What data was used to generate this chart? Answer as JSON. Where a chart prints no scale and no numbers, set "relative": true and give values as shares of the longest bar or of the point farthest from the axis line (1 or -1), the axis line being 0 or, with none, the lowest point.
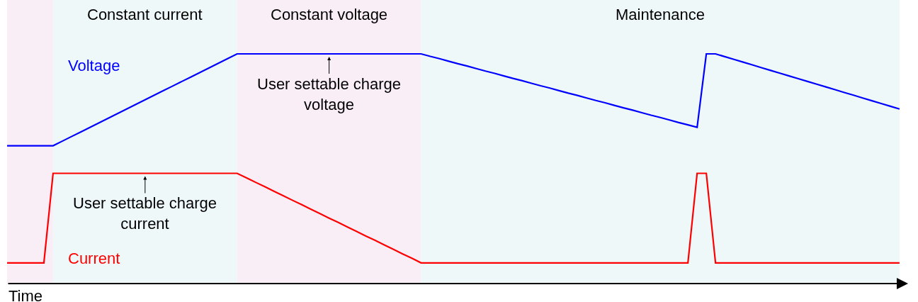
{
  "chart_data": {
    "type": "line",
    "relative": true,
    "xlabel": "Time",
    "categories": [
      null,
      null,
      null,
      null,
      null,
      null,
      null,
      null,
      null,
      null,
      null,
      null,
      null,
      null,
      null,
      null,
      null,
      null,
      null,
      null,
      null,
      null,
      null,
      null,
      null,
      null,
      null,
      null,
      null,
      null,
      null,
      null,
      null,
      null,
      null,
      null,
      null,
      null,
      null,
      null,
      null,
      null,
      null,
      null,
      null,
      null,
      null,
      null,
      null,
      null,
      null,
      null,
      null,
      null,
      null,
      null,
      null,
      null,
      null,
      null,
      null,
      null,
      null,
      null,
      null,
      null,
      null,
      null,
      null,
      null,
      null,
      null,
      null,
      null,
      null,
      null,
      null,
      null,
      null,
      null,
      null,
      null,
      null,
      null,
      null,
      null,
      null,
      null,
      null,
      null,
      null,
      null,
      null,
      null,
      null,
      null,
      null,
      null
    ],
    "series": [
      {
        "name": "Voltage",
        "color": "#0000ff",
        "values": [
          0.6,
          0.6,
          0.6,
          0.6,
          0.6,
          0.6,
          0.62,
          0.64,
          0.66,
          0.68,
          0.7,
          0.72,
          0.74,
          0.76,
          0.78,
          0.8,
          0.82,
          0.84,
          0.86,
          0.88,
          0.9,
          0.92,
          0.94,
          0.96,
          0.98,
          1,
          1,
          1,
          1,
          1,
          1,
          1,
          1,
          1,
          1,
          1,
          1,
          1,
          1,
          1,
          1,
          1,
          1,
          1,
          1,
          1,
          0.989,
          0.979,
          0.968,
          0.957,
          0.947,
          0.936,
          0.925,
          0.915,
          0.904,
          0.893,
          0.883,
          0.872,
          0.861,
          0.851,
          0.84,
          0.829,
          0.819,
          0.808,
          0.797,
          0.787,
          0.776,
          0.765,
          0.755,
          0.744,
          0.733,
          0.723,
          0.712,
          0.701,
          0.691,
          0.68,
          1,
          1,
          0.988,
          0.976,
          0.964,
          0.952,
          0.94,
          0.928,
          0.916,
          0.904,
          0.892,
          0.88,
          0.868,
          0.856,
          0.844,
          0.832,
          0.82,
          0.808,
          0.796,
          0.784,
          0.772,
          0.76
        ]
      },
      {
        "name": "Current",
        "color": "#ff0000",
        "values": [
          0.09,
          0.09,
          0.09,
          0.09,
          0.09,
          0.48,
          0.48,
          0.48,
          0.48,
          0.48,
          0.48,
          0.48,
          0.48,
          0.48,
          0.48,
          0.48,
          0.48,
          0.48,
          0.48,
          0.48,
          0.48,
          0.48,
          0.48,
          0.48,
          0.48,
          0.48,
          0.461,
          0.441,
          0.422,
          0.402,
          0.383,
          0.363,
          0.344,
          0.324,
          0.305,
          0.285,
          0.266,
          0.246,
          0.227,
          0.207,
          0.188,
          0.168,
          0.149,
          0.129,
          0.11,
          0.09,
          0.09,
          0.09,
          0.09,
          0.09,
          0.09,
          0.09,
          0.09,
          0.09,
          0.09,
          0.09,
          0.09,
          0.09,
          0.09,
          0.09,
          0.09,
          0.09,
          0.09,
          0.09,
          0.09,
          0.09,
          0.09,
          0.09,
          0.09,
          0.09,
          0.09,
          0.09,
          0.09,
          0.09,
          0.09,
          0.48,
          0.48,
          0.09,
          0.09,
          0.09,
          0.09,
          0.09,
          0.09,
          0.09,
          0.09,
          0.09,
          0.09,
          0.09,
          0.09,
          0.09,
          0.09,
          0.09,
          0.09,
          0.09,
          0.09,
          0.09,
          0.09,
          0.09
        ]
      }
    ],
    "annotations": [
      "Constant current",
      "Constant voltage",
      "Maintenance",
      {
        "text": "User settable charge voltage",
        "y": 1
      },
      {
        "text": "User settable charge current",
        "y": 0.48
      }
    ],
    "legend": false,
    "marker": "none",
    "line_style": "solid"
  }
}
